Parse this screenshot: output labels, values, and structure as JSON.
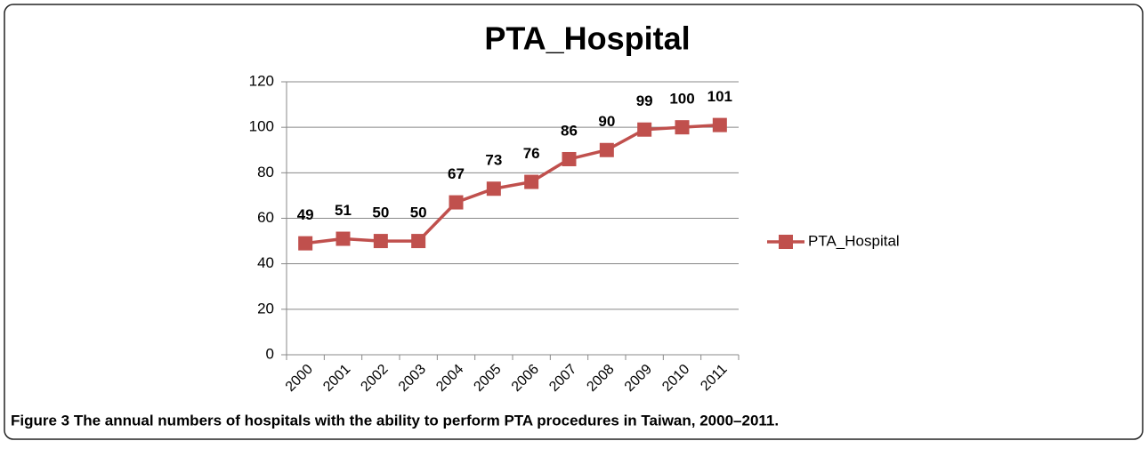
{
  "chart_data": {
    "type": "line",
    "title": "PTA_Hospital",
    "categories": [
      "2000",
      "2001",
      "2002",
      "2003",
      "2004",
      "2005",
      "2006",
      "2007",
      "2008",
      "2009",
      "2010",
      "2011"
    ],
    "series": [
      {
        "name": "PTA_Hospital",
        "color": "#c0504d",
        "values": [
          49,
          51,
          50,
          50,
          67,
          73,
          76,
          86,
          90,
          99,
          100,
          101
        ]
      }
    ],
    "ylim": [
      0,
      120
    ],
    "yticks": [
      0,
      20,
      40,
      60,
      80,
      100,
      120
    ],
    "grid": true,
    "legend": "right",
    "caption": "Figure 3 The annual numbers of hospitals with the ability to perform PTA procedures in Taiwan, 2000–2011."
  }
}
